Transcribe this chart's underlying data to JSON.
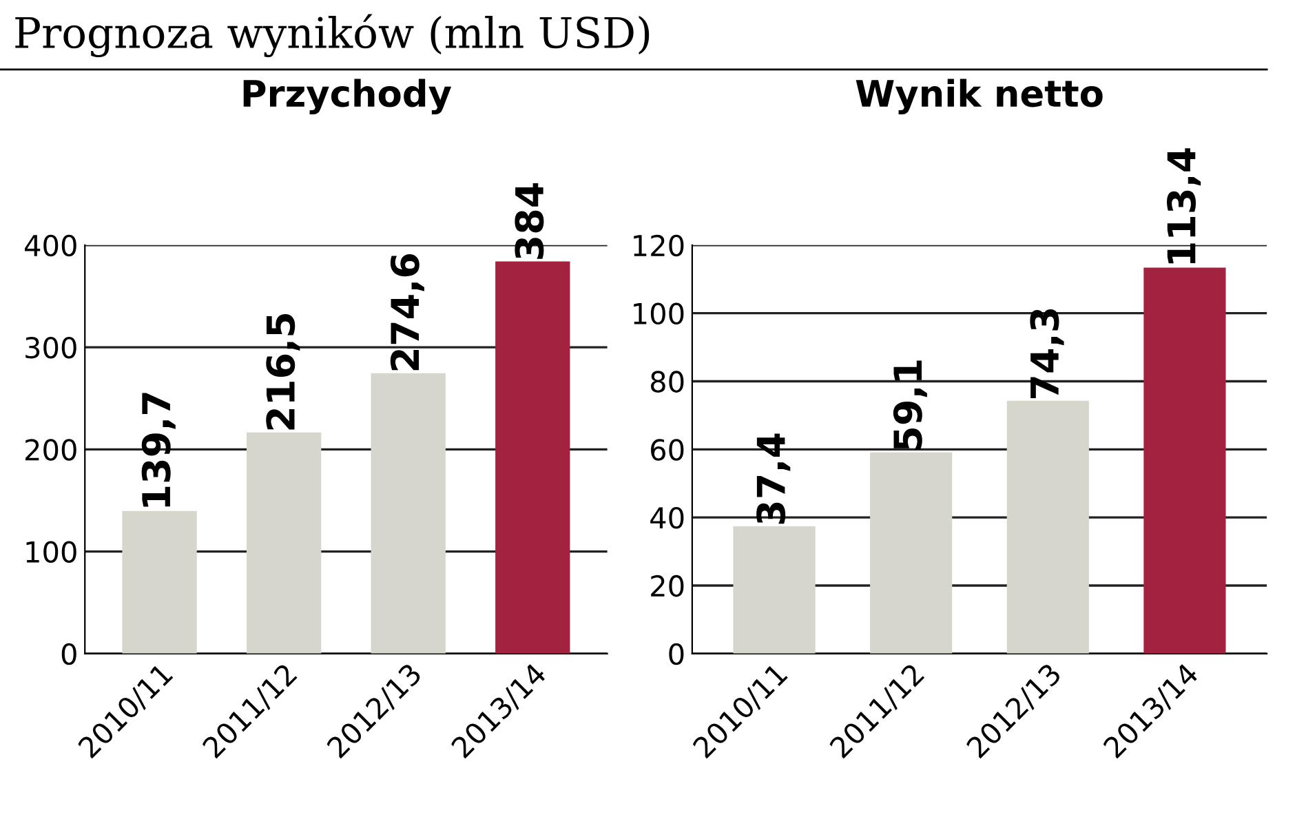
{
  "chart_data": [
    {
      "type": "bar",
      "title": "Przychody",
      "categories": [
        "2010/11",
        "2011/12",
        "2012/13",
        "2013/14"
      ],
      "values": [
        139.7,
        216.5,
        274.6,
        384
      ],
      "value_labels": [
        "139,7",
        "216,5",
        "274,6",
        "384"
      ],
      "colors": [
        "#d6d6cc",
        "#d6d6cc",
        "#d6d6cc",
        "#a3223f"
      ],
      "ylim": [
        0,
        400
      ],
      "yticks": [
        0,
        100,
        200,
        300,
        400
      ],
      "grid": "y",
      "annotations": [
        "Prognoza wyników (mln USD)"
      ]
    },
    {
      "type": "bar",
      "title": "Wynik netto",
      "categories": [
        "2010/11",
        "2011/12",
        "2012/13",
        "2013/14"
      ],
      "values": [
        37.4,
        59.1,
        74.3,
        113.4
      ],
      "value_labels": [
        "37,4",
        "59,1",
        "74,3",
        "113,4"
      ],
      "colors": [
        "#d6d6cc",
        "#d6d6cc",
        "#d6d6cc",
        "#a3223f"
      ],
      "ylim": [
        0,
        120
      ],
      "yticks": [
        0,
        20,
        40,
        60,
        80,
        100,
        120
      ],
      "grid": "y"
    }
  ]
}
